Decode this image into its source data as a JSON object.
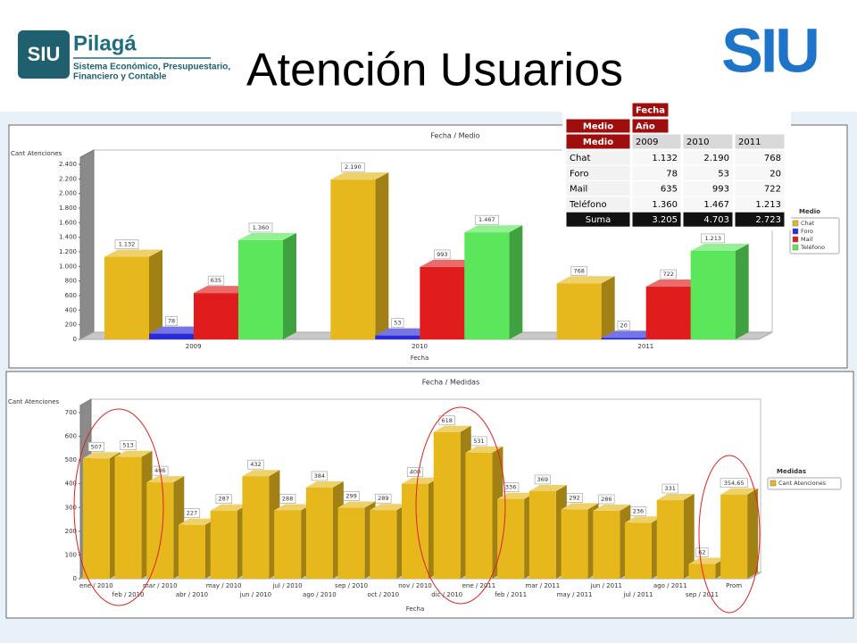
{
  "header": {
    "logo_left": "SIU",
    "product": "Pilagá",
    "product_lines": [
      "Sistema Económico, Presupuestario,",
      "Financiero y Contable"
    ],
    "title": "Atención Usuarios",
    "logo_right": "SIU"
  },
  "table": {
    "column_dimension": "Fecha",
    "column_level": "Año",
    "row_dimension": "Medio",
    "row_header": "Medio",
    "columns": [
      "2009",
      "2010",
      "2011"
    ],
    "rows": [
      {
        "label": "Chat",
        "values": [
          "1.132",
          "2.190",
          "768"
        ]
      },
      {
        "label": "Foro",
        "values": [
          "78",
          "53",
          "20"
        ]
      },
      {
        "label": "Mail",
        "values": [
          "635",
          "993",
          "722"
        ]
      },
      {
        "label": "Teléfono",
        "values": [
          "1.360",
          "1.467",
          "1.213"
        ]
      }
    ],
    "total": {
      "label": "Suma",
      "values": [
        "3.205",
        "4.703",
        "2.723"
      ]
    }
  },
  "chart_data": [
    {
      "type": "bar3d",
      "title": "Fecha / Medio",
      "y_label": "Cant Atenciones",
      "x_label": "Fecha",
      "legend_title": "Medio",
      "legend": "right",
      "categories": [
        "2009",
        "2010",
        "2011"
      ],
      "series": [
        {
          "name": "Chat",
          "color": "#e6b81c",
          "values": [
            1132,
            2190,
            768
          ],
          "value_labels": [
            "1.132",
            "2.190",
            "768"
          ]
        },
        {
          "name": "Foro",
          "color": "#2a2ad8",
          "values": [
            78,
            53,
            20
          ],
          "value_labels": [
            "78",
            "53",
            "20"
          ]
        },
        {
          "name": "Mail",
          "color": "#e01c1c",
          "values": [
            635,
            993,
            722
          ],
          "value_labels": [
            "635",
            "993",
            "722"
          ]
        },
        {
          "name": "Teléfono",
          "color": "#5ce65c",
          "values": [
            1360,
            1467,
            1213
          ],
          "value_labels": [
            "1.360",
            "1.467",
            "1.213"
          ]
        }
      ],
      "ylim": [
        0,
        2400
      ],
      "yticks": [
        0,
        {
          "value": 200,
          "label": "200"
        },
        400,
        600,
        800,
        {
          "value": 1000,
          "label": "1.000"
        },
        {
          "value": 1200,
          "label": "1.200"
        },
        {
          "value": 1400,
          "label": "1.400"
        },
        {
          "value": 1600,
          "label": "1.600"
        },
        {
          "value": 1800,
          "label": "1.800"
        },
        {
          "value": 2000,
          "label": "2.000"
        },
        {
          "value": 2200,
          "label": "2.200"
        },
        {
          "value": 2400,
          "label": "2.400"
        }
      ]
    },
    {
      "type": "bar3d",
      "title": "Fecha / Medidas",
      "y_label": "Cant Atenciones",
      "x_label": "Fecha",
      "legend_title": "Medidas",
      "legend": "right",
      "categories": [
        "ene / 2010",
        "feb / 2010",
        "mar / 2010",
        "abr / 2010",
        "may / 2010",
        "jun / 2010",
        "jul / 2010",
        "ago / 2010",
        "sep / 2010",
        "oct / 2010",
        "nov / 2010",
        "dic / 2010",
        "ene / 2011",
        "feb / 2011",
        "mar / 2011",
        "may / 2011",
        "jun / 2011",
        "jul / 2011",
        "ago / 2011",
        "sep / 2011",
        "Prom"
      ],
      "series": [
        {
          "name": "Cant Atenciones",
          "color": "#e6b81c",
          "values": [
            507,
            513,
            406,
            227,
            287,
            432,
            288,
            384,
            299,
            289,
            400,
            618,
            531,
            336,
            369,
            292,
            286,
            236,
            331,
            62,
            354.65
          ],
          "value_labels": [
            "507",
            "513",
            "406",
            "227",
            "287",
            "432",
            "288",
            "384",
            "299",
            "289",
            "400",
            "618",
            "531",
            "336",
            "369",
            "292",
            "286",
            "236",
            "331",
            "62",
            "354,65"
          ]
        }
      ],
      "ylim": [
        0,
        700
      ],
      "yticks": [
        0,
        100,
        200,
        300,
        400,
        500,
        600,
        700
      ]
    }
  ]
}
